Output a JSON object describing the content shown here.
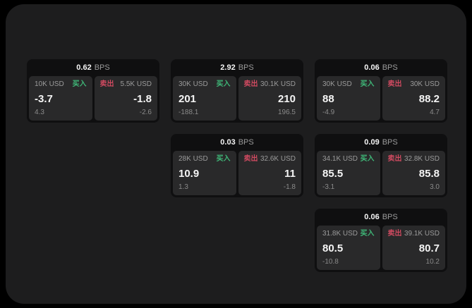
{
  "theme": {
    "bg": "#000000",
    "surface": "#1d1d1e",
    "card_bg": "#0f0f10",
    "panel_bg": "#29292a",
    "text_primary": "#f5f5f5",
    "text_secondary": "#9b9b9b",
    "text_dim": "#8a8a8a",
    "buy_green": "#3fb878",
    "sell_red": "#cf4a60"
  },
  "labels": {
    "bps_unit": "BPS",
    "buy": "买入",
    "sell": "卖出"
  },
  "cards": [
    {
      "bps": "0.62",
      "col": 0,
      "row": 0,
      "buy": {
        "size": "10K USD",
        "value": "-3.7",
        "delta": "4.3"
      },
      "sell": {
        "size": "5.5K USD",
        "value": "-1.8",
        "delta": "-2.6"
      }
    },
    {
      "bps": "2.92",
      "col": 1,
      "row": 0,
      "buy": {
        "size": "30K USD",
        "value": "201",
        "delta": "-188.1"
      },
      "sell": {
        "size": "30.1K USD",
        "value": "210",
        "delta": "196.5"
      }
    },
    {
      "bps": "0.06",
      "col": 2,
      "row": 0,
      "buy": {
        "size": "30K USD",
        "value": "88",
        "delta": "-4.9"
      },
      "sell": {
        "size": "30K USD",
        "value": "88.2",
        "delta": "4.7"
      }
    },
    {
      "bps": "0.03",
      "col": 1,
      "row": 1,
      "buy": {
        "size": "28K USD",
        "value": "10.9",
        "delta": "1.3"
      },
      "sell": {
        "size": "32.6K USD",
        "value": "11",
        "delta": "-1.8"
      }
    },
    {
      "bps": "0.09",
      "col": 2,
      "row": 1,
      "buy": {
        "size": "34.1K USD",
        "value": "85.5",
        "delta": "-3.1"
      },
      "sell": {
        "size": "32.8K USD",
        "value": "85.8",
        "delta": "3.0"
      }
    },
    {
      "bps": "0.06",
      "col": 2,
      "row": 2,
      "buy": {
        "size": "31.8K USD",
        "value": "80.5",
        "delta": "-10.8"
      },
      "sell": {
        "size": "39.1K USD",
        "value": "80.7",
        "delta": "10.2"
      }
    }
  ]
}
